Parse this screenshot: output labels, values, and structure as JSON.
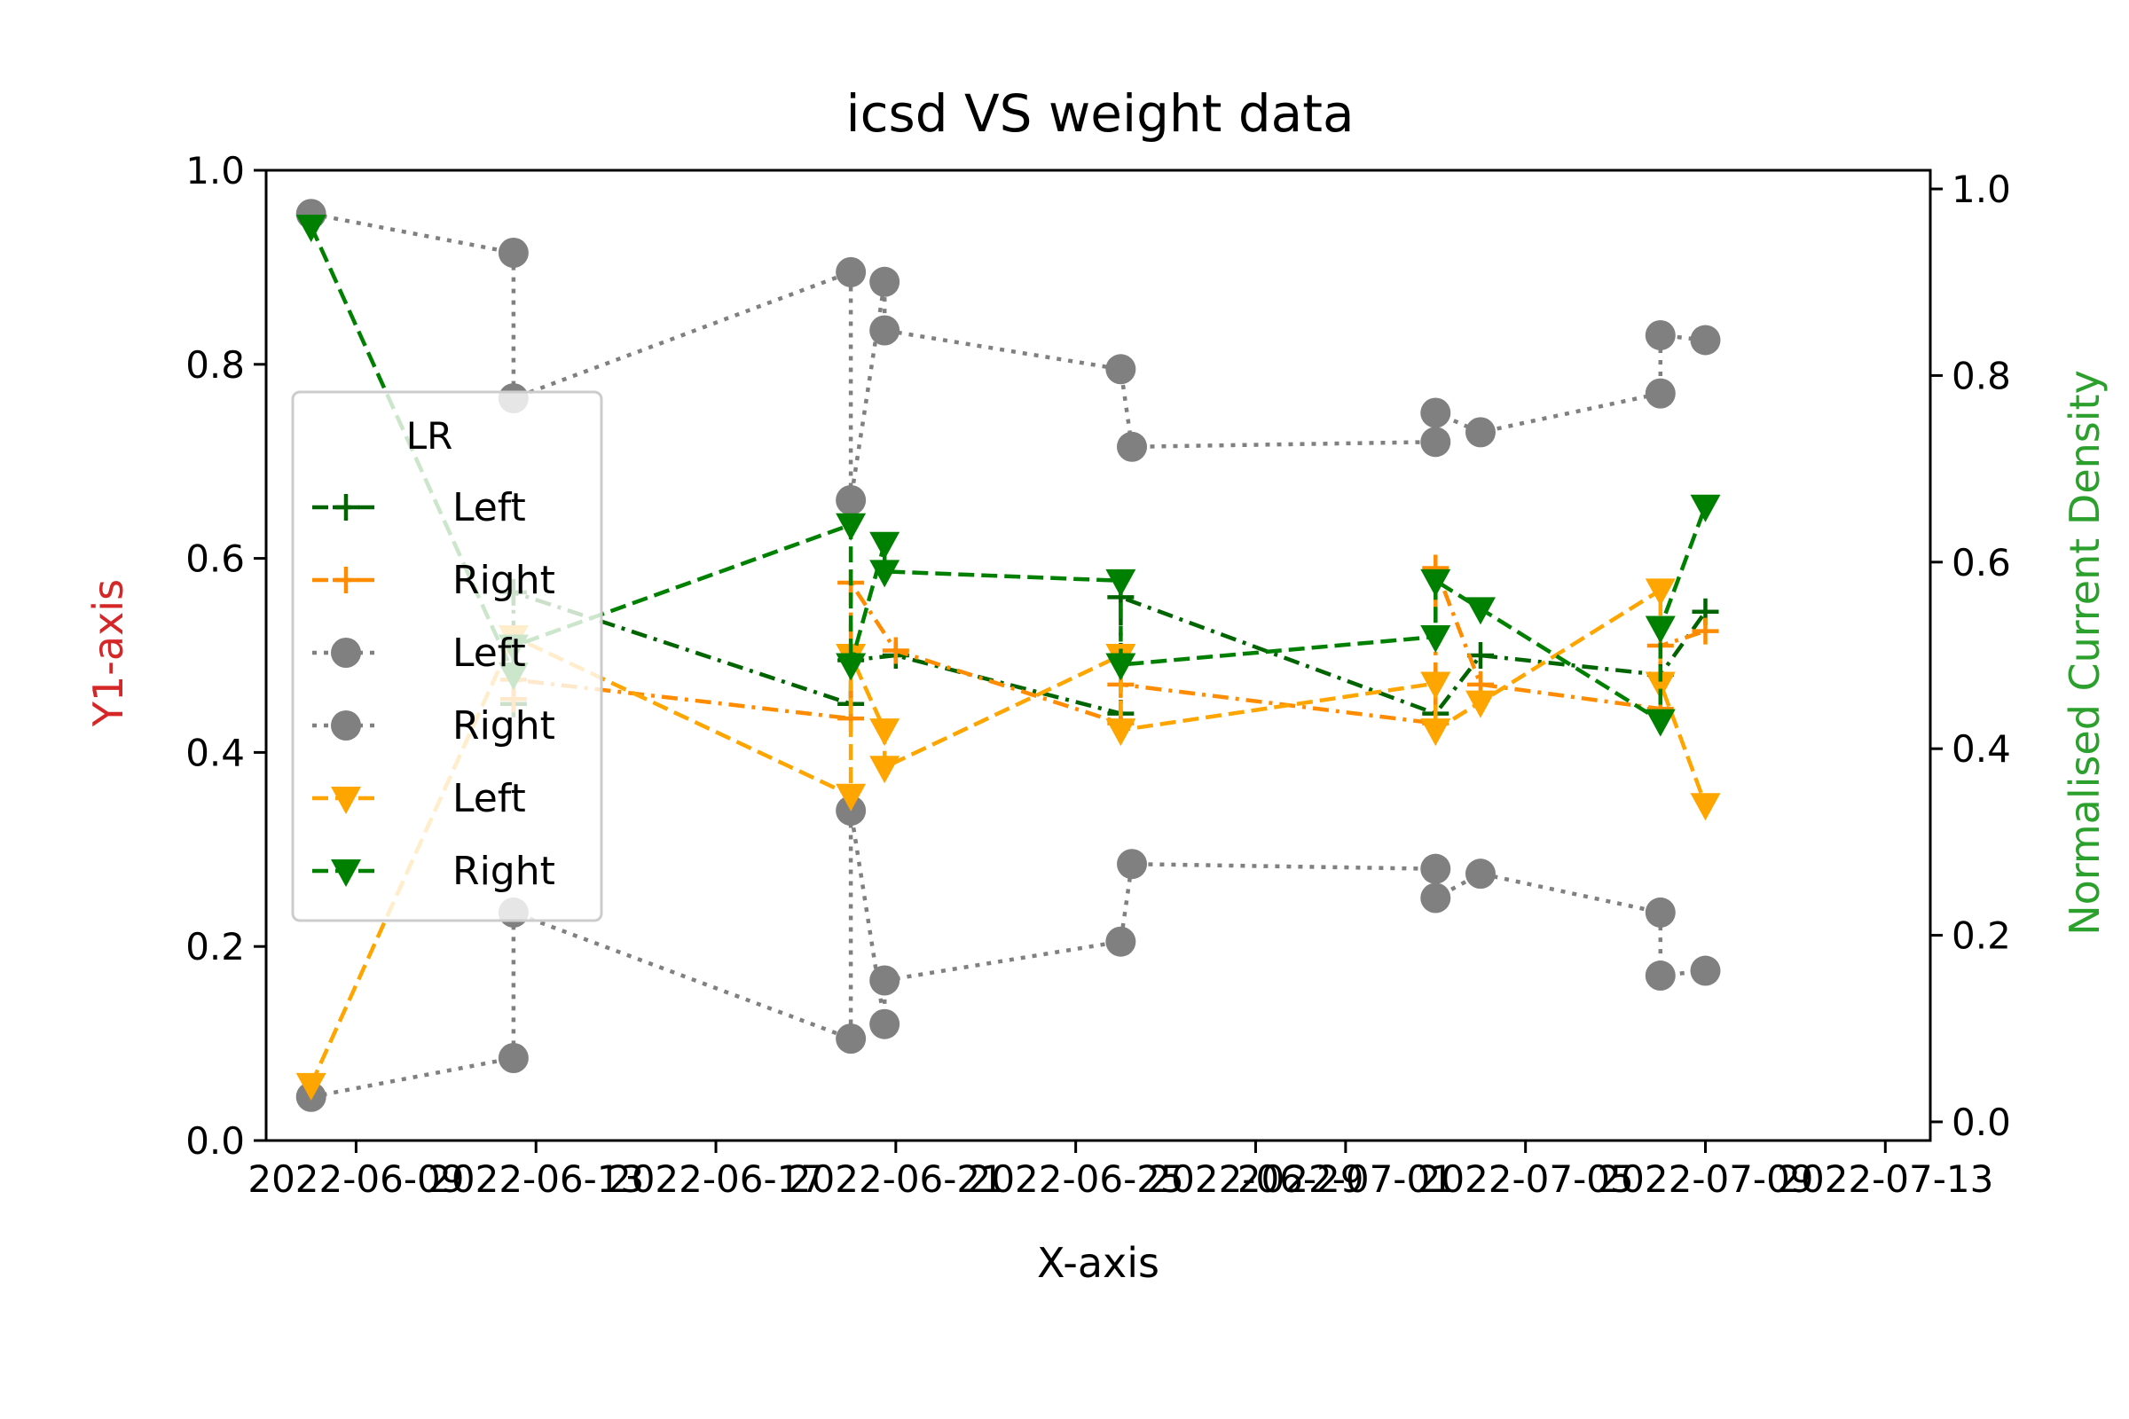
{
  "chart_data": {
    "type": "line",
    "title": "icsd VS weight data",
    "xlabel": "X-axis",
    "ylabel": "Y1-axis",
    "y2label": "Normalised Current Density",
    "ylim": [
      0.0,
      1.0
    ],
    "y2lim": [
      -0.02,
      1.02
    ],
    "xlim": [
      "2022-06-07",
      "2022-07-14"
    ],
    "x_ticks": [
      "2022-06-09",
      "2022-06-13",
      "2022-06-17",
      "2022-06-21",
      "2022-06-25",
      "2022-06-29",
      "2022-07-01",
      "2022-07-05",
      "2022-07-09",
      "2022-07-13"
    ],
    "y_ticks": [
      "0.0",
      "0.2",
      "0.4",
      "0.6",
      "0.8",
      "1.0"
    ],
    "y2_ticks": [
      "0.0",
      "0.2",
      "0.4",
      "0.6",
      "0.8",
      "1.0"
    ],
    "grid": false,
    "legend": {
      "title": "LR",
      "placement": "center-left",
      "entries": [
        {
          "label": "Left",
          "color": "#006400",
          "dash": "dash",
          "marker": "plus"
        },
        {
          "label": "Right",
          "color": "#ff8c00",
          "dash": "dash",
          "marker": "plus"
        },
        {
          "label": "Left",
          "color": "#808080",
          "dash": "dot",
          "marker": "circle"
        },
        {
          "label": "Right",
          "color": "#808080",
          "dash": "dot",
          "marker": "circle"
        },
        {
          "label": "Left",
          "color": "#ffa500",
          "dash": "dash",
          "marker": "triangle-down"
        },
        {
          "label": "Right",
          "color": "#008000",
          "dash": "dash",
          "marker": "triangle-down"
        }
      ]
    },
    "colors": {
      "ylabel": "#d62728",
      "y2label": "#2ca02c"
    },
    "series": [
      {
        "name": "Left",
        "axis": "y1",
        "color": "#006400",
        "dash": "dashdot",
        "marker": "plus",
        "points": [
          [
            "2022-06-12 12:00",
            0.45
          ],
          [
            "2022-06-12 12:00",
            0.565
          ],
          [
            "2022-06-20",
            0.45
          ],
          [
            "2022-06-20",
            0.495
          ],
          [
            "2022-06-21",
            0.5
          ],
          [
            "2022-06-26",
            0.44
          ],
          [
            "2022-06-26",
            0.56
          ],
          [
            "2022-07-03",
            0.44
          ],
          [
            "2022-07-04",
            0.5
          ],
          [
            "2022-07-08",
            0.48
          ],
          [
            "2022-07-09",
            0.545
          ]
        ]
      },
      {
        "name": "Right",
        "axis": "y1",
        "color": "#ff8c00",
        "dash": "dashdot",
        "marker": "plus",
        "points": [
          [
            "2022-06-12 12:00",
            0.455
          ],
          [
            "2022-06-12 12:00",
            0.475
          ],
          [
            "2022-06-20",
            0.435
          ],
          [
            "2022-06-20",
            0.575
          ],
          [
            "2022-06-21",
            0.505
          ],
          [
            "2022-06-26",
            0.43
          ],
          [
            "2022-06-26",
            0.47
          ],
          [
            "2022-07-03",
            0.43
          ],
          [
            "2022-07-03",
            0.59
          ],
          [
            "2022-07-04",
            0.47
          ],
          [
            "2022-07-08",
            0.445
          ],
          [
            "2022-07-08",
            0.51
          ],
          [
            "2022-07-09",
            0.525
          ]
        ]
      },
      {
        "name": "Left",
        "axis": "y1",
        "color": "#808080",
        "dash": "dot",
        "marker": "circle",
        "points": [
          [
            "2022-06-08",
            0.045
          ],
          [
            "2022-06-12 12:00",
            0.085
          ],
          [
            "2022-06-12 12:00",
            0.235
          ],
          [
            "2022-06-20",
            0.105
          ],
          [
            "2022-06-20",
            0.34
          ],
          [
            "2022-06-20 18:00",
            0.12
          ],
          [
            "2022-06-20 18:00",
            0.165
          ],
          [
            "2022-06-26",
            0.205
          ],
          [
            "2022-06-26 06:00",
            0.285
          ],
          [
            "2022-07-03",
            0.28
          ],
          [
            "2022-07-03",
            0.25
          ],
          [
            "2022-07-04",
            0.275
          ],
          [
            "2022-07-08",
            0.235
          ],
          [
            "2022-07-08",
            0.17
          ],
          [
            "2022-07-09",
            0.175
          ]
        ]
      },
      {
        "name": "Right",
        "axis": "y1",
        "color": "#808080",
        "dash": "dot",
        "marker": "circle",
        "points": [
          [
            "2022-06-08",
            0.955
          ],
          [
            "2022-06-12 12:00",
            0.915
          ],
          [
            "2022-06-12 12:00",
            0.765
          ],
          [
            "2022-06-20",
            0.895
          ],
          [
            "2022-06-20",
            0.66
          ],
          [
            "2022-06-20 18:00",
            0.885
          ],
          [
            "2022-06-20 18:00",
            0.835
          ],
          [
            "2022-06-26",
            0.795
          ],
          [
            "2022-06-26 06:00",
            0.715
          ],
          [
            "2022-07-03",
            0.72
          ],
          [
            "2022-07-03",
            0.75
          ],
          [
            "2022-07-04",
            0.73
          ],
          [
            "2022-07-08",
            0.77
          ],
          [
            "2022-07-08",
            0.83
          ],
          [
            "2022-07-09",
            0.825
          ]
        ]
      },
      {
        "name": "Left",
        "axis": "y2",
        "color": "#ffa500",
        "dash": "dash",
        "marker": "triangle-down",
        "points": [
          [
            "2022-06-08",
            0.04
          ],
          [
            "2022-06-12 12:00",
            0.52
          ],
          [
            "2022-06-20",
            0.35
          ],
          [
            "2022-06-20",
            0.5
          ],
          [
            "2022-06-20 18:00",
            0.42
          ],
          [
            "2022-06-20 18:00",
            0.38
          ],
          [
            "2022-06-26",
            0.5
          ],
          [
            "2022-06-26",
            0.42
          ],
          [
            "2022-07-03",
            0.47
          ],
          [
            "2022-07-03",
            0.42
          ],
          [
            "2022-07-04",
            0.45
          ],
          [
            "2022-07-08",
            0.57
          ],
          [
            "2022-07-08",
            0.47
          ],
          [
            "2022-07-09",
            0.34
          ]
        ]
      },
      {
        "name": "Right",
        "axis": "y2",
        "color": "#008000",
        "dash": "dash",
        "marker": "triangle-down",
        "points": [
          [
            "2022-06-08",
            0.96
          ],
          [
            "2022-06-12 12:00",
            0.48
          ],
          [
            "2022-06-12 12:00",
            0.51
          ],
          [
            "2022-06-20",
            0.64
          ],
          [
            "2022-06-20",
            0.49
          ],
          [
            "2022-06-20 18:00",
            0.62
          ],
          [
            "2022-06-20 18:00",
            0.59
          ],
          [
            "2022-06-26",
            0.58
          ],
          [
            "2022-06-26",
            0.49
          ],
          [
            "2022-07-03",
            0.52
          ],
          [
            "2022-07-03",
            0.58
          ],
          [
            "2022-07-04",
            0.55
          ],
          [
            "2022-07-08",
            0.43
          ],
          [
            "2022-07-08",
            0.53
          ],
          [
            "2022-07-09",
            0.66
          ]
        ]
      }
    ]
  }
}
